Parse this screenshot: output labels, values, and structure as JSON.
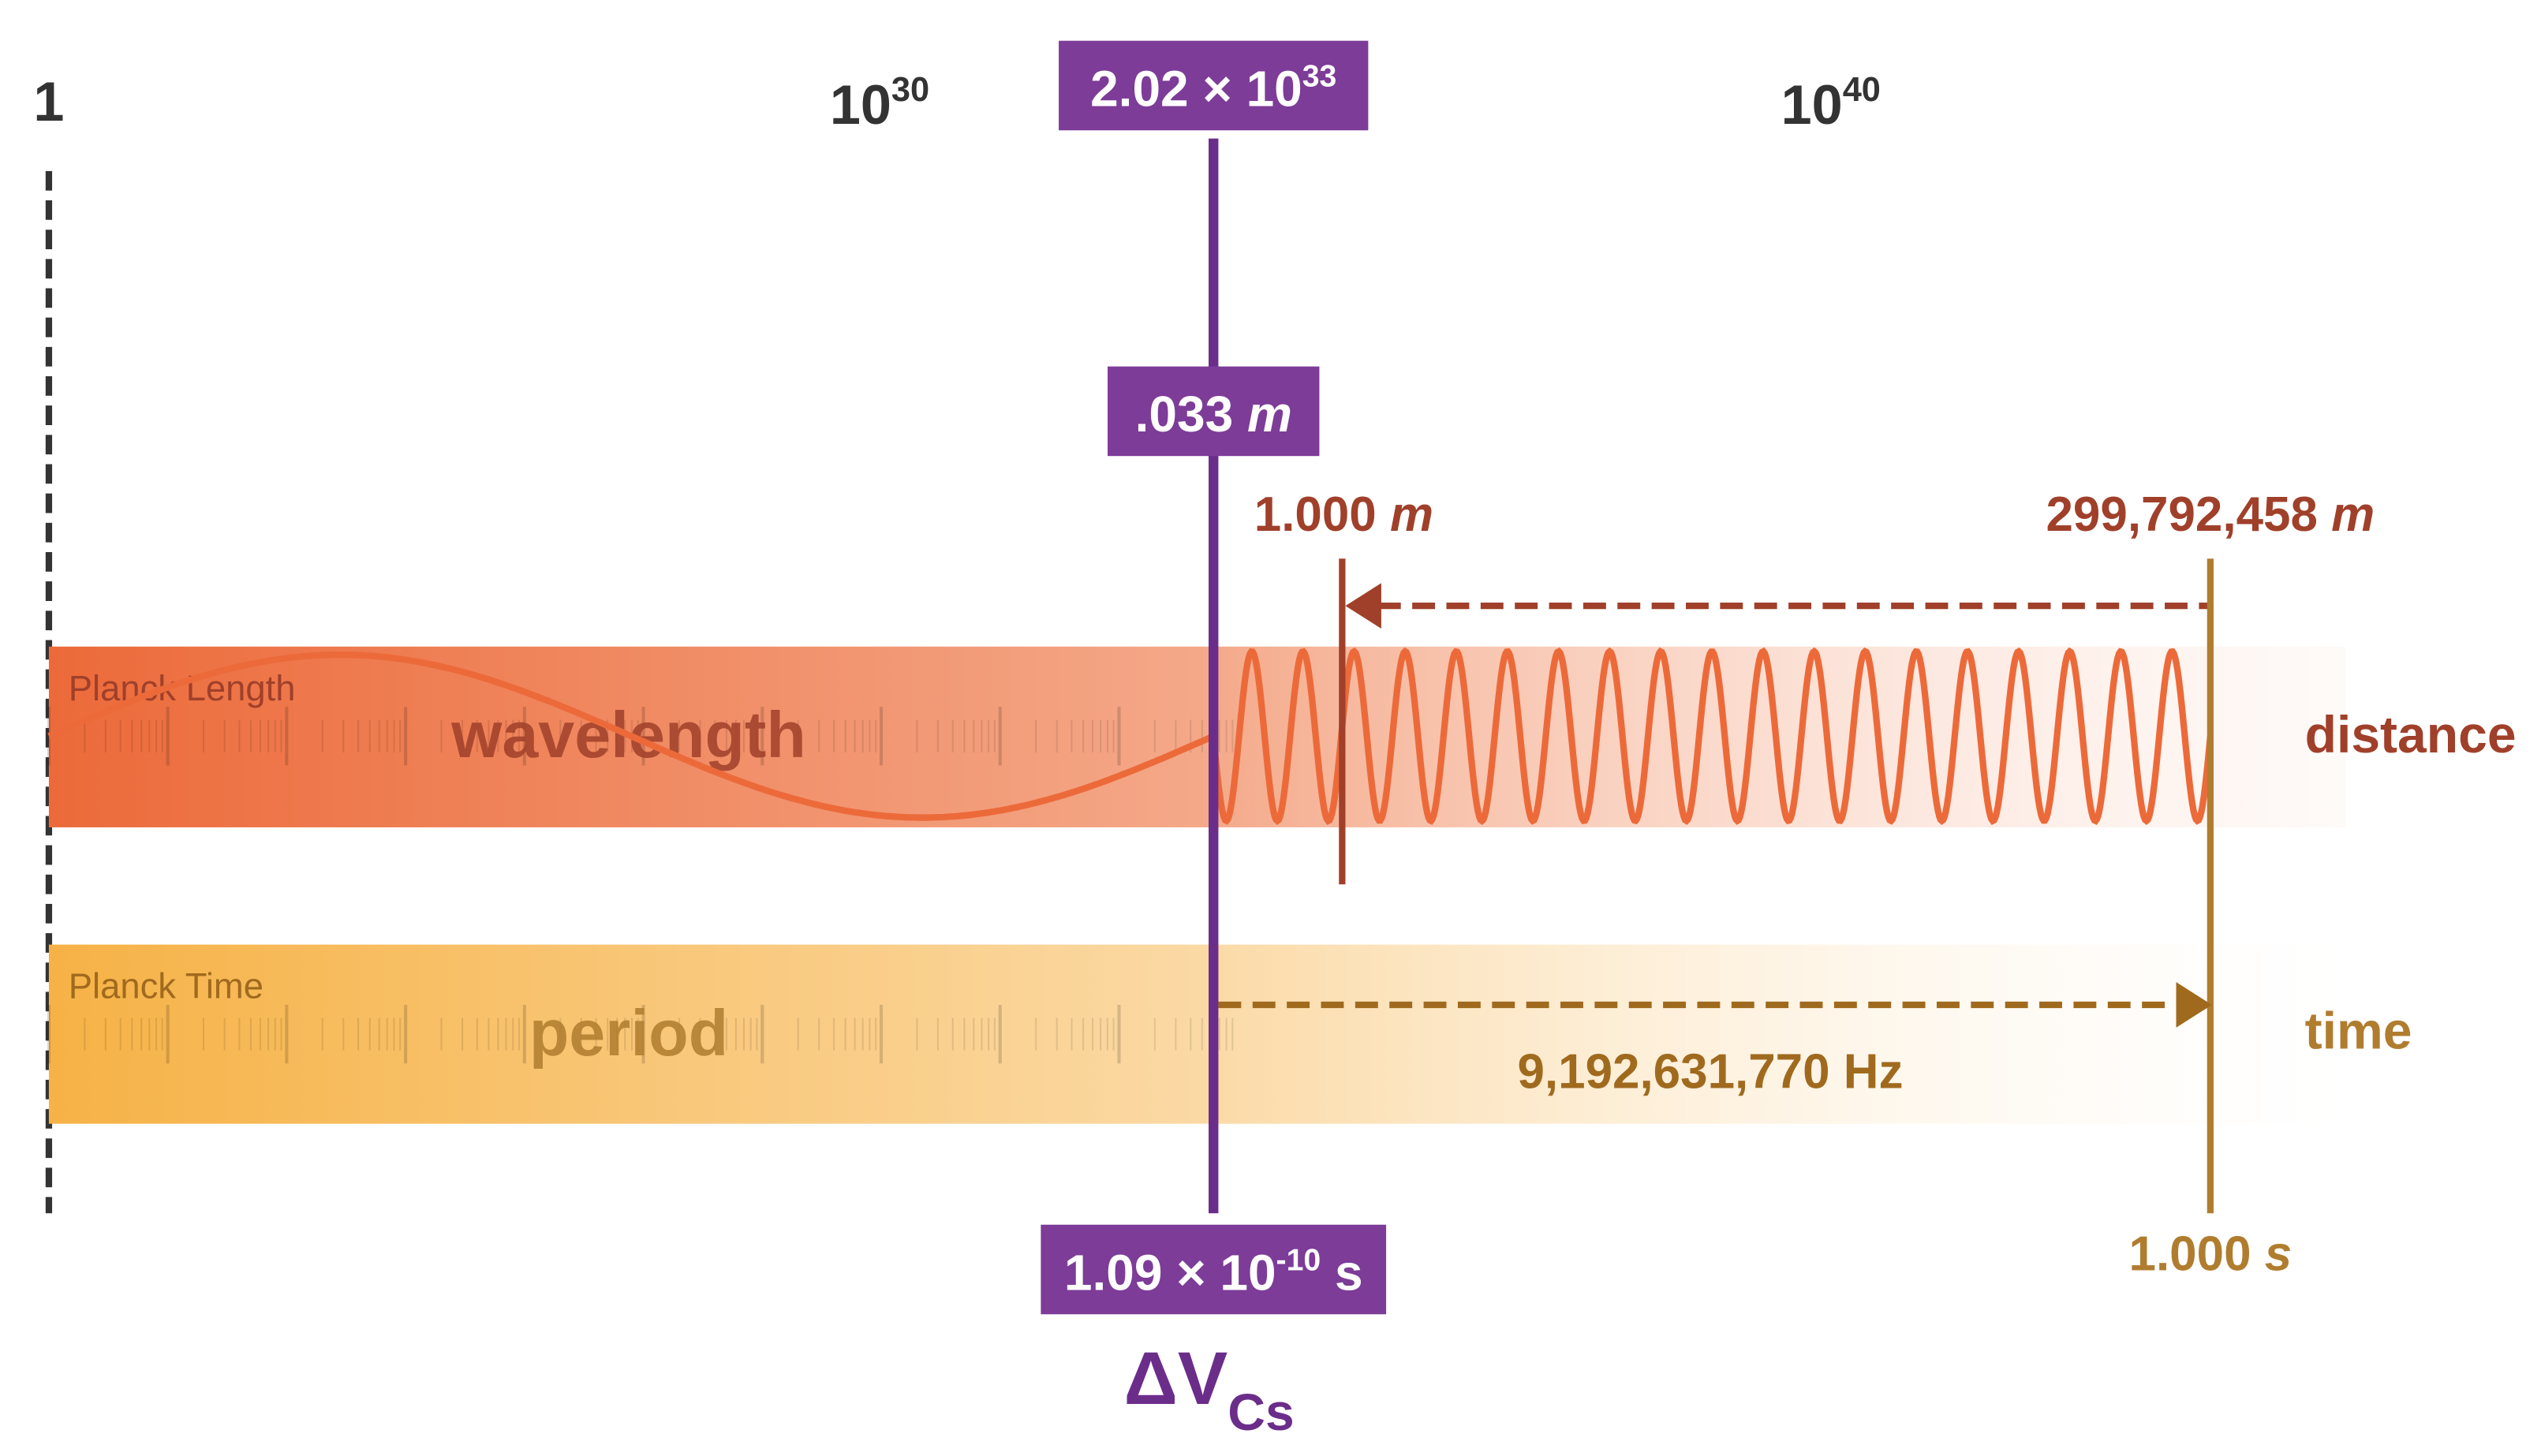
{
  "scale": {
    "origin": "1",
    "left": {
      "base": "10",
      "exp": "30"
    },
    "right": {
      "base": "10",
      "exp": "40"
    }
  },
  "marker": {
    "count": {
      "mantissa": "2.02 × 10",
      "exp": "33"
    },
    "wavelength": {
      "number": ".033",
      "unit": "m"
    },
    "period": {
      "mantissa": "1.09 × 10",
      "exp": "-10",
      "unit": "s"
    },
    "symbol": {
      "main": "ΔV",
      "sub": "Cs"
    }
  },
  "distance": {
    "start": {
      "number": "1.000",
      "unit": "m"
    },
    "end": {
      "number": "299,792,458",
      "unit": "m"
    },
    "band_left": "Planck Length",
    "band_center": "wavelength",
    "band_right": "distance"
  },
  "time": {
    "band_left": "Planck Time",
    "band_center": "period",
    "band_right": "time",
    "frequency": "9,192,631,770 Hz",
    "end": {
      "number": "1.000",
      "unit": "s"
    }
  }
}
